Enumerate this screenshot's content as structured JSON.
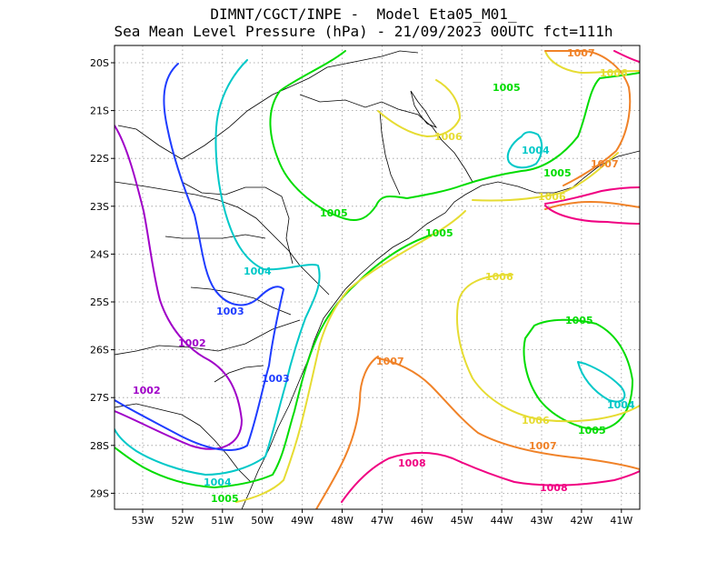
{
  "header": {
    "line1": "DIMNT/CGCT/INPE -  Model Eta05_M01_",
    "line2": "Sea Mean Level Pressure (hPa) - 21/09/2023 00UTC fct=111h"
  },
  "axes": {
    "x_ticks": [
      "53W",
      "52W",
      "51W",
      "50W",
      "49W",
      "48W",
      "47W",
      "46W",
      "45W",
      "44W",
      "43W",
      "42W",
      "41W"
    ],
    "y_ticks": [
      "20S",
      "21S",
      "22S",
      "23S",
      "24S",
      "25S",
      "26S",
      "27S",
      "28S",
      "29S"
    ]
  },
  "colors": {
    "1002": "#a000c8",
    "1003": "#1e3cff",
    "1004": "#00c8c8",
    "1005": "#00dc00",
    "1006": "#e6dc32",
    "1007": "#f08228",
    "1008": "#f00082",
    "coast": "#000000",
    "grid": "#999999"
  },
  "contour_labels": [
    {
      "text": "1007",
      "level": "1007"
    },
    {
      "text": "1006",
      "level": "1006"
    },
    {
      "text": "1005",
      "level": "1005"
    },
    {
      "text": "1006",
      "level": "1006"
    },
    {
      "text": "1004",
      "level": "1004"
    },
    {
      "text": "1005",
      "level": "1005"
    },
    {
      "text": "1007",
      "level": "1007"
    },
    {
      "text": "1006",
      "level": "1006"
    },
    {
      "text": "1005",
      "level": "1005"
    },
    {
      "text": "1005",
      "level": "1005"
    },
    {
      "text": "1004",
      "level": "1004"
    },
    {
      "text": "1003",
      "level": "1003"
    },
    {
      "text": "1006",
      "level": "1006"
    },
    {
      "text": "1005",
      "level": "1005"
    },
    {
      "text": "1002",
      "level": "1002"
    },
    {
      "text": "1007",
      "level": "1007"
    },
    {
      "text": "1003",
      "level": "1003"
    },
    {
      "text": "1002",
      "level": "1002"
    },
    {
      "text": "1004",
      "level": "1004"
    },
    {
      "text": "1006",
      "level": "1006"
    },
    {
      "text": "1005",
      "level": "1005"
    },
    {
      "text": "1007",
      "level": "1007"
    },
    {
      "text": "1008",
      "level": "1008"
    },
    {
      "text": "1004",
      "level": "1004"
    },
    {
      "text": "1005",
      "level": "1005"
    },
    {
      "text": "1008",
      "level": "1008"
    }
  ]
}
